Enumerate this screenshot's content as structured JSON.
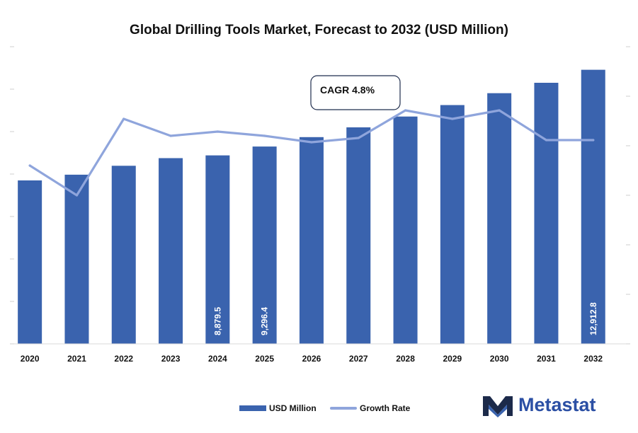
{
  "title": "Global Drilling Tools Market, Forecast to 2032 (USD Million)",
  "annotation": "CAGR 4.8%",
  "legend": {
    "bar": "USD Million",
    "line": "Growth Rate"
  },
  "brand": "Metastat",
  "colors": {
    "bar": "#3A63AE",
    "line": "#8FA5DC",
    "brand": "#2B4FA4",
    "logo_dark": "#1C2A4A"
  },
  "chart_data": {
    "type": "bar",
    "title": "Global Drilling Tools Market, Forecast to 2032 (USD Million)",
    "categories": [
      "2020",
      "2021",
      "2022",
      "2023",
      "2024",
      "2025",
      "2026",
      "2027",
      "2028",
      "2029",
      "2030",
      "2031",
      "2032"
    ],
    "series": [
      {
        "name": "USD Million",
        "type": "bar",
        "values": [
          7700,
          7970,
          8390,
          8750,
          8879.5,
          9296.4,
          9740,
          10200,
          10710,
          11250,
          11810,
          12300,
          12912.8
        ]
      },
      {
        "name": "Growth Rate",
        "type": "line",
        "values": [
          4.2,
          3.5,
          5.3,
          4.9,
          5.0,
          4.9,
          4.75,
          4.85,
          5.5,
          5.3,
          5.5,
          4.8,
          4.8
        ]
      }
    ],
    "data_labels": {
      "2024": "8,879.5",
      "2025": "9,296.4",
      "2032": "12,912.8"
    },
    "ylim_left": [
      0,
      14000
    ],
    "ylim_right": [
      0,
      7
    ],
    "legend_position": "bottom",
    "grid": false
  }
}
